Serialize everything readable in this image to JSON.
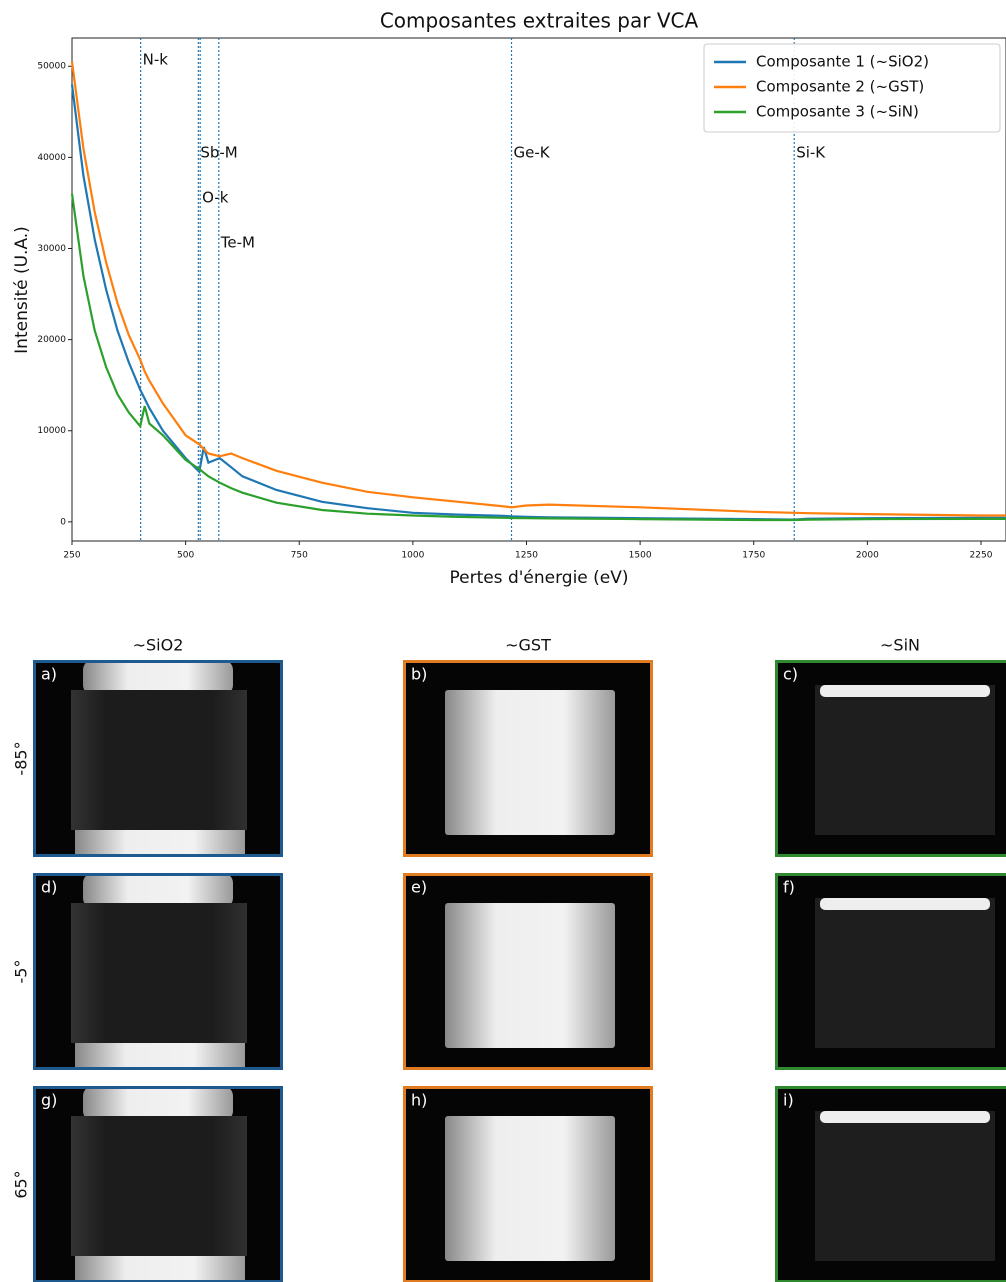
{
  "chart_data": {
    "type": "line",
    "title": "Composantes extraites par VCA",
    "x_label": "Pertes d'énergie (eV)",
    "y_label": "Intensité (U.A.)",
    "x": [
      250,
      275,
      300,
      325,
      350,
      375,
      400,
      410,
      420,
      450,
      500,
      530,
      540,
      550,
      575,
      600,
      625,
      700,
      800,
      900,
      1000,
      1100,
      1200,
      1217,
      1250,
      1300,
      1500,
      1750,
      1839,
      1870,
      2000,
      2250,
      2305
    ],
    "series": [
      {
        "name": "Composante 1 (~SiO2)",
        "color": "#1f77b4",
        "values": [
          48000,
          38000,
          31000,
          25500,
          21000,
          17500,
          14500,
          13500,
          12500,
          10000,
          7000,
          5500,
          8200,
          6500,
          7000,
          6000,
          5000,
          3500,
          2200,
          1500,
          1000,
          800,
          650,
          600,
          550,
          500,
          400,
          300,
          250,
          350,
          400,
          450,
          450
        ]
      },
      {
        "name": "Composante 2 (~GST)",
        "color": "#ff7f0e",
        "values": [
          50500,
          41000,
          34000,
          28500,
          24000,
          20500,
          17800,
          16500,
          15500,
          13000,
          9500,
          8500,
          8000,
          7500,
          7200,
          7500,
          7000,
          5600,
          4300,
          3300,
          2700,
          2200,
          1700,
          1600,
          1800,
          1900,
          1600,
          1100,
          1000,
          950,
          850,
          700,
          700
        ]
      },
      {
        "name": "Composante 3 (~SiN)",
        "color": "#2ca02c",
        "values": [
          36000,
          27000,
          21000,
          17000,
          14000,
          12000,
          10500,
          12700,
          10800,
          9500,
          6800,
          5800,
          5400,
          5000,
          4300,
          3700,
          3200,
          2100,
          1300,
          900,
          700,
          550,
          450,
          420,
          400,
          380,
          300,
          200,
          200,
          250,
          300,
          320,
          320
        ]
      }
    ],
    "annotations": [
      {
        "text": "N-k",
        "x": 401
      },
      {
        "text": "Sb-M",
        "x": 528
      },
      {
        "text": "O-k",
        "x": 532
      },
      {
        "text": "Te-M",
        "x": 573
      },
      {
        "text": "Ge-K",
        "x": 1217
      },
      {
        "text": "Si-K",
        "x": 1839
      }
    ],
    "annotation_color": "#1f77b4",
    "xlim": [
      250,
      2305
    ],
    "ylim": [
      -2100,
      53100
    ],
    "xticks": [
      250,
      500,
      750,
      1000,
      1250,
      1500,
      1750,
      2000,
      2250
    ],
    "yticks": [
      0,
      10000,
      20000,
      30000,
      40000,
      50000
    ],
    "legend": "upper right"
  },
  "panels": {
    "columns": [
      "~SiO2",
      "~GST",
      "~SiN"
    ],
    "column_colors": [
      "#1f5a8e",
      "#e07b22",
      "#2f8a2f"
    ],
    "rows": [
      "-85°",
      "-5°",
      "65°"
    ],
    "labels": [
      "a)",
      "b)",
      "c)",
      "d)",
      "e)",
      "f)",
      "g)",
      "h)",
      "i)"
    ]
  }
}
